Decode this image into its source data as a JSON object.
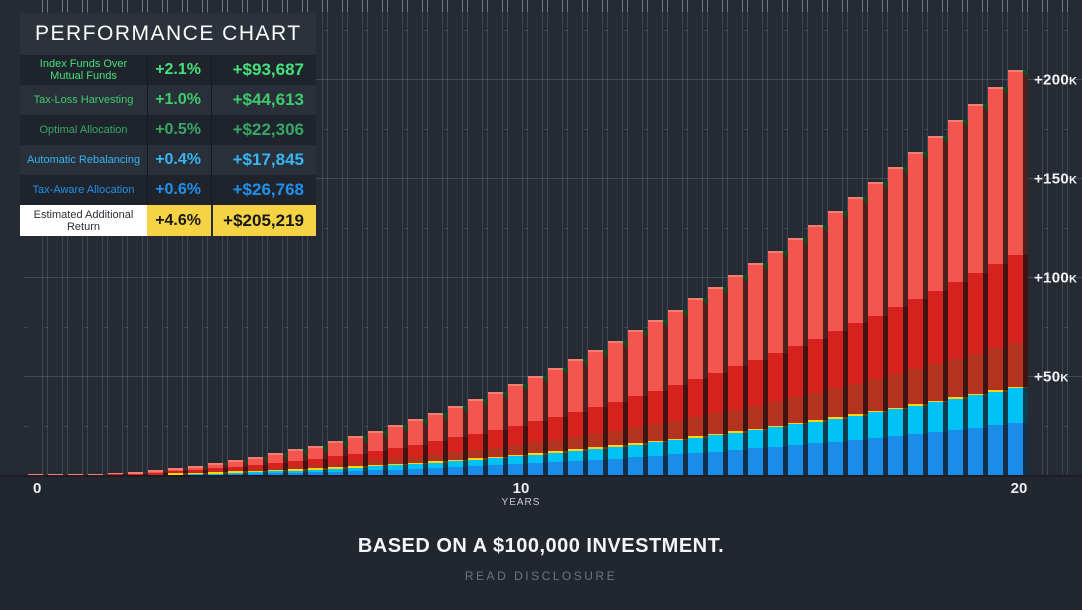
{
  "colors": {
    "background": "#22262e",
    "plot_background": "#252a33",
    "grid_line": "#3c424c",
    "highlight_yellow": "#f6d344",
    "highlight_white": "#ffffff"
  },
  "legend": {
    "title": "PERFORMANCE CHART",
    "rows": [
      {
        "label": "Index Funds Over Mutual Funds",
        "pct": "+2.1%",
        "amount": "+$93,687",
        "color": "#45e17b"
      },
      {
        "label": "Tax-Loss Harvesting",
        "pct": "+1.0%",
        "amount": "+$44,613",
        "color": "#3ecb6d"
      },
      {
        "label": "Optimal Allocation",
        "pct": "+0.5%",
        "amount": "+$22,306",
        "color": "#38a666"
      },
      {
        "label": "Automatic Rebalancing",
        "pct": "+0.4%",
        "amount": "+$17,845",
        "color": "#38b5f2"
      },
      {
        "label": "Tax-Aware Allocation",
        "pct": "+0.6%",
        "amount": "+$26,768",
        "color": "#2190ea"
      }
    ],
    "total_row": {
      "label": "Estimated Additional Return",
      "pct": "+4.6%",
      "amount": "+$205,219"
    }
  },
  "footer": {
    "caption": "BASED ON A $100,000 INVESTMENT.",
    "disclosure": "READ DISCLOSURE"
  },
  "chart_data": {
    "type": "bar",
    "stacked": true,
    "title": "Performance Chart",
    "xlabel": "YEARS",
    "x_ticks": [
      "0",
      "10",
      "20"
    ],
    "xlim_years": [
      0,
      20
    ],
    "ylim_k": [
      0,
      240
    ],
    "y_axis_values_k": [
      50,
      100,
      150,
      200
    ],
    "y_tick_labels": [
      "+50K",
      "+100K",
      "+150K",
      "+200K"
    ],
    "minor_y_values_k": [
      25,
      75,
      125,
      175,
      225
    ],
    "grid": true,
    "legend_position": "top-left",
    "bar_count": 50,
    "total_final": 205219,
    "totals_by_year": [
      0,
      327,
      1453,
      3473,
      6444,
      10415,
      15408,
      21482,
      28585,
      36868,
      46246,
      56755,
      68430,
      81277,
      95314,
      110559,
      127022,
      144702,
      163661,
      183788,
      205219
    ],
    "series": [
      {
        "name": "Tax-Aware Allocation",
        "final_value": 26768,
        "color": "#1b8de9"
      },
      {
        "name": "Automatic Rebalancing",
        "final_value": 17845,
        "color": "#00c2f4"
      },
      {
        "name": "Optimal Allocation",
        "final_value": 22306,
        "color": "#b23320"
      },
      {
        "name": "Tax-Loss Harvesting",
        "final_value": 44613,
        "color": "#d6221d"
      },
      {
        "name": "Index Funds Over Mutual Funds",
        "final_value": 93687,
        "color": "#f2564f"
      }
    ],
    "accents": {
      "top_corner_green": "#3fd96a",
      "divider_sliver_yellow": "#ffd60a",
      "index_top_cap": "#f67d74",
      "bar_shade": "rgba(14,10,12,0.72)"
    }
  }
}
